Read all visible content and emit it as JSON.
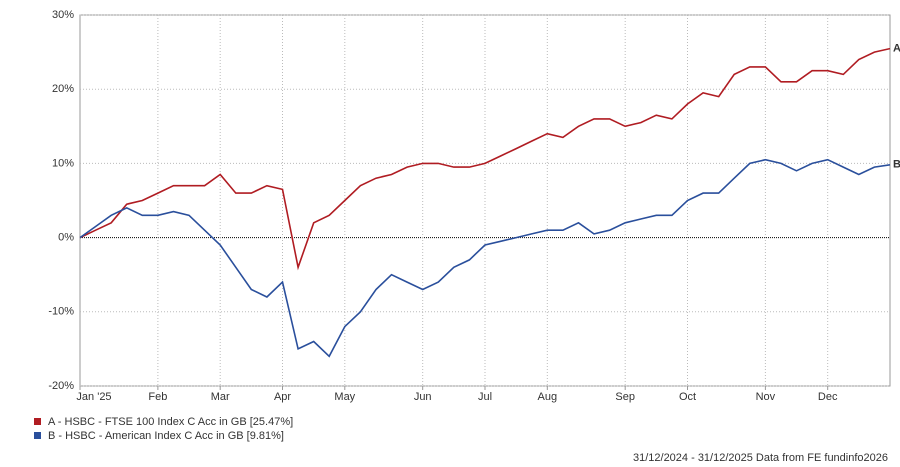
{
  "chart_data": {
    "type": "line",
    "categories": [
      "Jan '25",
      null,
      null,
      null,
      null,
      "Feb",
      null,
      null,
      null,
      "Mar",
      null,
      null,
      null,
      "Apr",
      null,
      null,
      null,
      "May",
      null,
      null,
      null,
      null,
      "Jun",
      null,
      null,
      null,
      "Jul",
      null,
      null,
      null,
      "Aug",
      null,
      null,
      null,
      null,
      "Sep",
      null,
      null,
      null,
      "Oct",
      null,
      null,
      null,
      null,
      "Nov",
      null,
      null,
      null,
      "Dec",
      null,
      null,
      null,
      null
    ],
    "series": [
      {
        "name": "A - HSBC - FTSE 100 Index C Acc in GB [25.47%]",
        "end_label": "A",
        "color": "#b01c22",
        "values": [
          0,
          1,
          2,
          4.5,
          5,
          6,
          7,
          7,
          7,
          8.5,
          6,
          6,
          7,
          6.5,
          -4,
          2,
          3,
          5,
          7,
          8,
          8.5,
          9.5,
          10,
          10,
          9.5,
          9.5,
          10,
          11,
          12,
          13,
          14,
          13.5,
          15,
          16,
          16,
          15,
          15.5,
          16.5,
          16,
          18,
          19.5,
          19,
          22,
          23,
          23,
          21,
          21,
          22.5,
          22.5,
          22,
          24,
          25,
          25.47
        ]
      },
      {
        "name": "B - HSBC - American Index C Acc in GB [9.81%]",
        "end_label": "B",
        "color": "#2a4f9c",
        "values": [
          0,
          1.5,
          3,
          4,
          3,
          3,
          3.5,
          3,
          1,
          -1,
          -4,
          -7,
          -8,
          -6,
          -15,
          -14,
          -16,
          -12,
          -10,
          -7,
          -5,
          -6,
          -7,
          -6,
          -4,
          -3,
          -1,
          -0.5,
          0,
          0.5,
          1,
          1,
          2,
          0.5,
          1,
          2,
          2.5,
          3,
          3,
          5,
          6,
          6,
          8,
          10,
          10.5,
          10,
          9,
          10,
          10.5,
          9.5,
          8.5,
          9.5,
          9.81
        ]
      }
    ],
    "ylim": [
      -20,
      30
    ],
    "yticks": [
      {
        "value": -20,
        "label": "-20%"
      },
      {
        "value": -10,
        "label": "-10%"
      },
      {
        "value": 0,
        "label": "0%"
      },
      {
        "value": 10,
        "label": "10%"
      },
      {
        "value": 20,
        "label": "20%"
      },
      {
        "value": 30,
        "label": "30%"
      }
    ],
    "grid": true,
    "footer": "31/12/2024 - 31/12/2025 Data from FE fundinfo2026"
  }
}
